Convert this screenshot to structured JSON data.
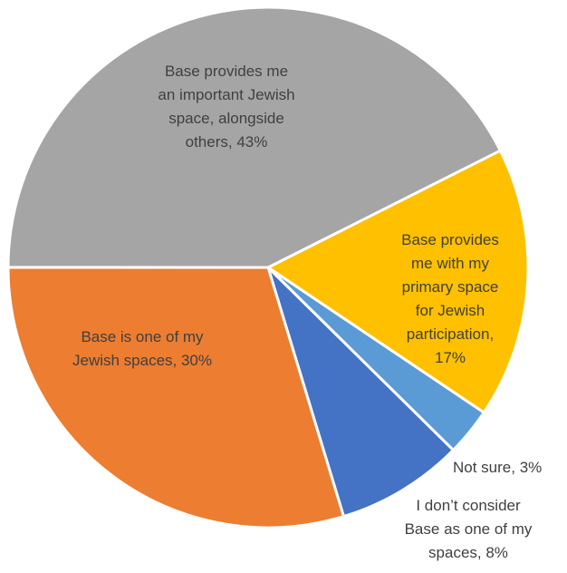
{
  "chart_data": {
    "type": "pie",
    "title": "",
    "slices": [
      {
        "label_lines": [
          "Base provides",
          "me with my",
          "primary space",
          "for Jewish",
          "participation,",
          "17%"
        ],
        "value": 17,
        "color": "#FFC000"
      },
      {
        "label_lines": [
          "Not sure, 3%"
        ],
        "value": 3,
        "color": "#5B9BD5"
      },
      {
        "label_lines": [
          "I don’t consider",
          "Base as one of my",
          "spaces, 8%"
        ],
        "value": 8,
        "color": "#4472C4"
      },
      {
        "label_lines": [
          "Base is one of my",
          "Jewish spaces, 30%"
        ],
        "value": 30,
        "color": "#ED7D31"
      },
      {
        "label_lines": [
          "Base provides me",
          "an important Jewish",
          "space, alongside",
          "others, 43%"
        ],
        "value": 43,
        "color": "#A5A5A5"
      }
    ]
  }
}
